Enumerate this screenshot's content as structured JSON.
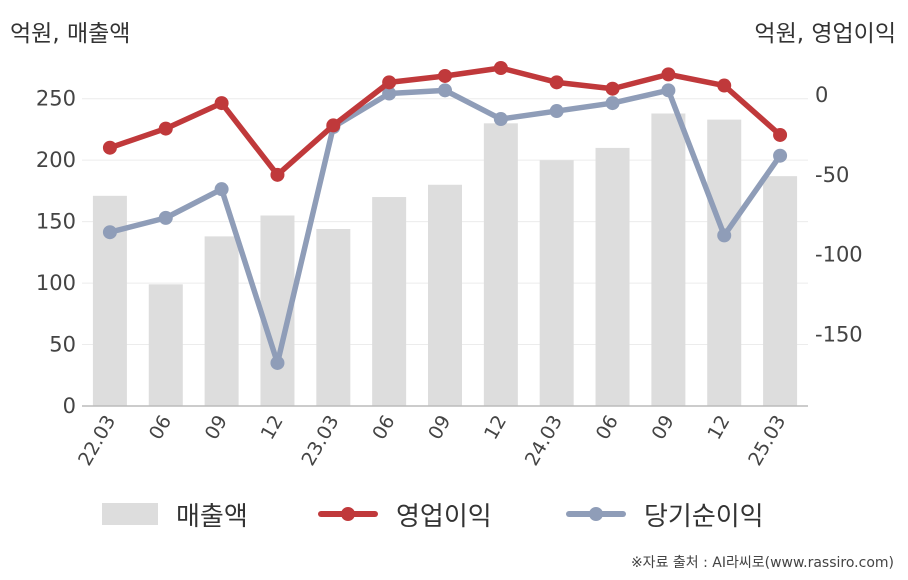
{
  "units": {
    "left": "억원, 매출액",
    "right": "억원, 영업이익"
  },
  "source": "※자료 출처 : AI라씨로(www.rassiro.com)",
  "colors": {
    "bar": "#dddddd",
    "op": "#c0393b",
    "net": "#8f9db8",
    "grid": "#ececec",
    "axis": "#bbbbbb"
  },
  "chart_data": {
    "type": "bar+line",
    "categories": [
      "22.03",
      "06",
      "09",
      "12",
      "23.03",
      "06",
      "09",
      "12",
      "24.03",
      "06",
      "09",
      "12",
      "25.03"
    ],
    "y_left": {
      "ticks": [
        0,
        50,
        100,
        150,
        200,
        250
      ],
      "range": [
        0,
        275
      ]
    },
    "y_right": {
      "ticks": [
        0,
        -50,
        -100,
        -150
      ],
      "range": [
        -195,
        17
      ]
    },
    "series": [
      {
        "name": "매출액",
        "axis": "left",
        "kind": "bar",
        "values": [
          171,
          99,
          138,
          155,
          144,
          170,
          180,
          230,
          200,
          210,
          238,
          233,
          187
        ]
      },
      {
        "name": "영업이익",
        "axis": "right",
        "kind": "line",
        "values": [
          -33,
          -21,
          -5,
          -50,
          -19,
          8,
          12,
          17,
          8,
          4,
          13,
          6,
          -25
        ]
      },
      {
        "name": "당기순이익",
        "axis": "right",
        "kind": "line",
        "values": [
          -86,
          -77,
          -59,
          -168,
          -20,
          1,
          3,
          -15,
          -10,
          -5,
          3,
          -88,
          -38
        ]
      }
    ],
    "legend_position": "bottom"
  }
}
